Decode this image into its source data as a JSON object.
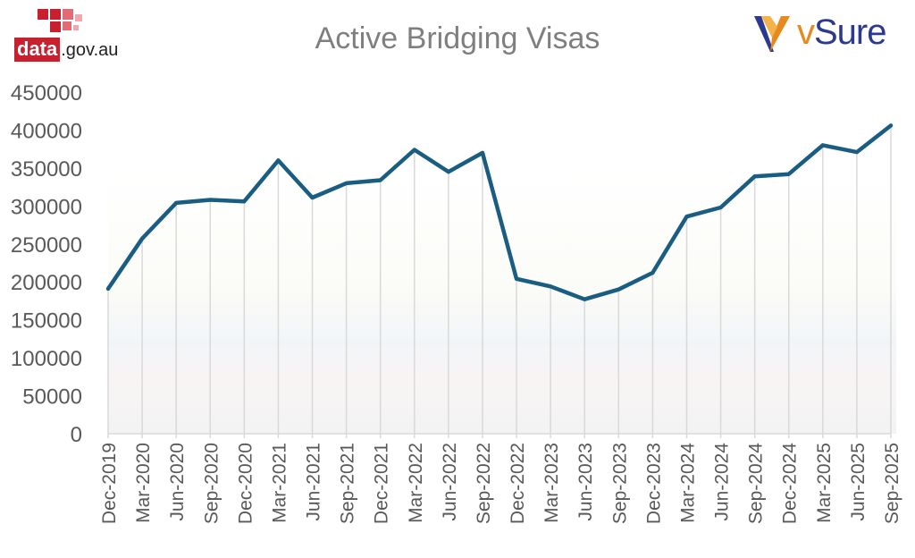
{
  "logos": {
    "left_brand": "data",
    "left_suffix": ".gov.au",
    "right_brand_v": "v",
    "right_brand_rest": "Sure"
  },
  "colors": {
    "line": "#1a5d82",
    "grid": "#d9d9d9",
    "axis_text": "#595959",
    "title_text": "#7f7f7f",
    "logo_red": "#c8202f",
    "logo_orange": "#e8891d",
    "logo_navy": "#2b3990"
  },
  "chart_data": {
    "type": "line",
    "title": "Active Bridging Visas",
    "xlabel": "",
    "ylabel": "",
    "categories": [
      "Dec-2019",
      "Mar-2020",
      "Jun-2020",
      "Sep-2020",
      "Dec-2020",
      "Mar-2021",
      "Jun-2021",
      "Sep-2021",
      "Dec-2021",
      "Mar-2022",
      "Jun-2022",
      "Sep-2022",
      "Dec-2022",
      "Mar-2023",
      "Jun-2023",
      "Sep-2023",
      "Dec-2023",
      "Mar-2024",
      "Jun-2024",
      "Sep-2024",
      "Dec-2024",
      "Mar-2025",
      "Jun-2025",
      "Sep-2025"
    ],
    "series": [
      {
        "values": [
          191000,
          257000,
          304000,
          308000,
          306000,
          360000,
          311000,
          330000,
          334000,
          374000,
          345000,
          370000,
          204000,
          194000,
          177000,
          190000,
          212000,
          286000,
          298000,
          339000,
          342000,
          380000,
          371000,
          406000
        ]
      }
    ],
    "ylim": [
      0,
      450000
    ],
    "yticks": [
      0,
      50000,
      100000,
      150000,
      200000,
      250000,
      300000,
      350000,
      400000,
      450000
    ],
    "grid": "vertical",
    "legend": "none"
  }
}
